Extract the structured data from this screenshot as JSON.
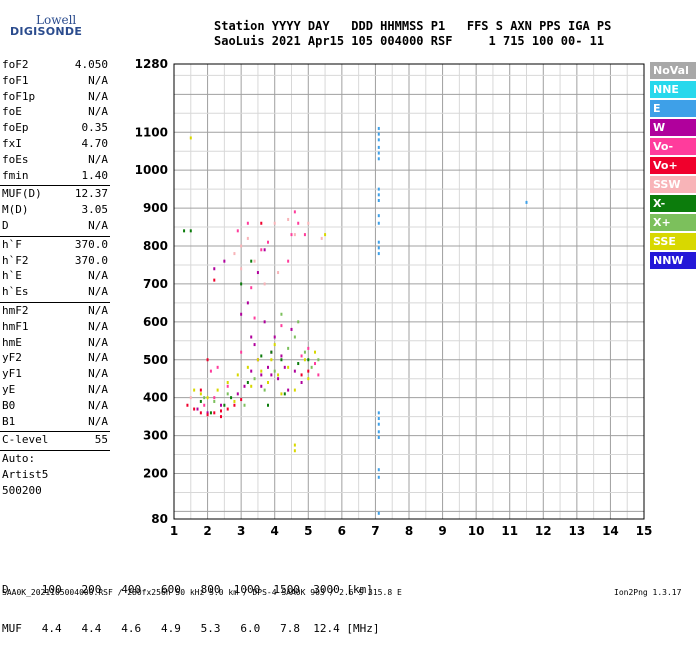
{
  "logo": {
    "line1": "Lowell",
    "line2": "DIGISONDE"
  },
  "header": {
    "line1": "Station YYYY DAY   DDD HHMMSS P1   FFS S AXN PPS IGA PS",
    "line2": "SaoLuis 2021 Apr15 105 004000 RSF     1 715 100 00- 11"
  },
  "params": [
    {
      "name": "foF2",
      "value": "4.050"
    },
    {
      "name": "foF1",
      "value": "N/A"
    },
    {
      "name": "foF1p",
      "value": "N/A"
    },
    {
      "name": "foE",
      "value": "N/A"
    },
    {
      "name": "foEp",
      "value": "0.35"
    },
    {
      "name": "fxI",
      "value": "4.70"
    },
    {
      "name": "foEs",
      "value": "N/A"
    },
    {
      "name": "fmin",
      "value": "1.40"
    },
    {
      "sep": true
    },
    {
      "name": "MUF(D)",
      "value": "12.37"
    },
    {
      "name": "M(D)",
      "value": "3.05"
    },
    {
      "name": "D",
      "value": "N/A"
    },
    {
      "sep": true
    },
    {
      "name": "h`F",
      "value": "370.0"
    },
    {
      "name": "h`F2",
      "value": "370.0"
    },
    {
      "name": "h`E",
      "value": "N/A"
    },
    {
      "name": "h`Es",
      "value": "N/A"
    },
    {
      "sep": true
    },
    {
      "name": "hmF2",
      "value": "N/A"
    },
    {
      "name": "hmF1",
      "value": "N/A"
    },
    {
      "name": "hmE",
      "value": "N/A"
    },
    {
      "name": "yF2",
      "value": "N/A"
    },
    {
      "name": "yF1",
      "value": "N/A"
    },
    {
      "name": "yE",
      "value": "N/A"
    },
    {
      "name": "B0",
      "value": "N/A"
    },
    {
      "name": "B1",
      "value": "N/A"
    },
    {
      "sep": true
    },
    {
      "name": "C-level",
      "value": "55"
    }
  ],
  "autoscale": {
    "line1": "Auto:",
    "line2": "Artist5",
    "line3": "500200"
  },
  "legend": [
    {
      "label": "NoVal",
      "color": "#a8a8a8"
    },
    {
      "label": "NNE",
      "color": "#28d8ec"
    },
    {
      "label": "E",
      "color": "#3ea0e8"
    },
    {
      "label": "W",
      "color": "#b0009c"
    },
    {
      "label": "Vo-",
      "color": "#ff3c9c"
    },
    {
      "label": "Vo+",
      "color": "#f0002c"
    },
    {
      "label": "SSW",
      "color": "#f8b4b8"
    },
    {
      "label": "X-",
      "color": "#0c7c0c"
    },
    {
      "label": "X+",
      "color": "#7cc05c"
    },
    {
      "label": "SSE",
      "color": "#d8d800"
    },
    {
      "label": "NNW",
      "color": "#2418d8"
    }
  ],
  "muf_table": {
    "row1_label": "D",
    "row1": [
      "100",
      "200",
      "400",
      "600",
      "800",
      "1000",
      "1500",
      "3000"
    ],
    "row1_unit": "[km]",
    "row2_label": "MUF",
    "row2": [
      "4.4",
      "4.4",
      "4.6",
      "4.9",
      "5.3",
      "6.0",
      "7.8",
      "12.4"
    ],
    "row2_unit": "[MHz]"
  },
  "footer": {
    "left": "SAA0K_2021105004000.RSF / 280fx256h 50 kHz 5.0 km / DPS-4 SAA0K 903 / 2.6 S 315.8 E",
    "right": "Ion2Png 1.3.17"
  },
  "chart_data": {
    "type": "scatter",
    "x_ticks": [
      "1",
      "2",
      "3",
      "4",
      "5",
      "6",
      "7",
      "8",
      "9",
      "10",
      "11",
      "12",
      "13",
      "14",
      "15"
    ],
    "y_ticks": [
      "80",
      "200",
      "300",
      "400",
      "500",
      "600",
      "700",
      "800",
      "900",
      "1000",
      "1100",
      "1280"
    ],
    "xlim": [
      1,
      15
    ],
    "ylim": [
      80,
      1280
    ],
    "grid": true,
    "series": [
      {
        "name": "E",
        "color": "#3ea0e8",
        "points": [
          [
            7.1,
            1110
          ],
          [
            7.1,
            1095
          ],
          [
            7.1,
            1080
          ],
          [
            7.1,
            1060
          ],
          [
            7.1,
            1045
          ],
          [
            7.1,
            1030
          ],
          [
            7.1,
            950
          ],
          [
            7.1,
            935
          ],
          [
            7.1,
            920
          ],
          [
            7.1,
            880
          ],
          [
            7.1,
            860
          ],
          [
            7.1,
            810
          ],
          [
            7.1,
            795
          ],
          [
            7.1,
            780
          ],
          [
            7.1,
            360
          ],
          [
            7.1,
            345
          ],
          [
            7.1,
            330
          ],
          [
            7.1,
            310
          ],
          [
            7.1,
            295
          ],
          [
            7.1,
            210
          ],
          [
            7.1,
            190
          ],
          [
            7.1,
            95
          ],
          [
            11.5,
            915
          ]
        ]
      },
      {
        "name": "W",
        "color": "#b0009c",
        "points": [
          [
            2.2,
            740
          ],
          [
            2.5,
            760
          ],
          [
            3.0,
            620
          ],
          [
            3.2,
            650
          ],
          [
            3.3,
            560
          ],
          [
            3.4,
            540
          ],
          [
            3.5,
            500
          ],
          [
            3.6,
            460
          ],
          [
            3.7,
            600
          ],
          [
            3.8,
            480
          ],
          [
            3.9,
            520
          ],
          [
            4.0,
            560
          ],
          [
            4.1,
            450
          ],
          [
            4.2,
            510
          ],
          [
            4.4,
            420
          ],
          [
            4.6,
            470
          ],
          [
            3.1,
            430
          ],
          [
            3.3,
            470
          ],
          [
            3.6,
            430
          ],
          [
            3.9,
            460
          ],
          [
            4.3,
            480
          ],
          [
            4.8,
            440
          ],
          [
            2.9,
            410
          ],
          [
            2.4,
            380
          ],
          [
            2.0,
            360
          ],
          [
            1.7,
            370
          ],
          [
            4.5,
            580
          ],
          [
            3.5,
            730
          ],
          [
            3.7,
            790
          ]
        ]
      },
      {
        "name": "Vo-",
        "color": "#ff3c9c",
        "points": [
          [
            2.1,
            470
          ],
          [
            2.3,
            480
          ],
          [
            2.9,
            840
          ],
          [
            3.2,
            860
          ],
          [
            3.3,
            690
          ],
          [
            3.6,
            790
          ],
          [
            3.8,
            810
          ],
          [
            4.5,
            830
          ],
          [
            4.6,
            890
          ],
          [
            4.7,
            860
          ],
          [
            5.0,
            530
          ],
          [
            5.2,
            490
          ],
          [
            5.3,
            460
          ],
          [
            4.8,
            510
          ],
          [
            4.2,
            590
          ],
          [
            3.4,
            610
          ],
          [
            3.0,
            520
          ],
          [
            2.6,
            430
          ],
          [
            2.2,
            400
          ],
          [
            1.9,
            380
          ],
          [
            4.9,
            830
          ],
          [
            4.4,
            760
          ]
        ]
      },
      {
        "name": "Vo+",
        "color": "#f0002c",
        "points": [
          [
            1.4,
            380
          ],
          [
            1.6,
            370
          ],
          [
            1.8,
            360
          ],
          [
            2.0,
            355
          ],
          [
            2.2,
            360
          ],
          [
            2.4,
            365
          ],
          [
            2.6,
            370
          ],
          [
            2.8,
            380
          ],
          [
            3.0,
            395
          ],
          [
            2.0,
            500
          ],
          [
            2.2,
            710
          ],
          [
            3.6,
            860
          ],
          [
            4.8,
            460
          ],
          [
            5.0,
            470
          ],
          [
            1.8,
            420
          ],
          [
            2.4,
            350
          ]
        ]
      },
      {
        "name": "SSW",
        "color": "#f8b4b8",
        "points": [
          [
            2.8,
            780
          ],
          [
            3.0,
            800
          ],
          [
            3.2,
            820
          ],
          [
            3.4,
            760
          ],
          [
            4.0,
            860
          ],
          [
            4.4,
            870
          ],
          [
            4.6,
            830
          ],
          [
            5.0,
            860
          ],
          [
            5.4,
            820
          ],
          [
            1.5,
            400
          ],
          [
            3.0,
            740
          ],
          [
            3.7,
            700
          ],
          [
            4.1,
            730
          ]
        ]
      },
      {
        "name": "X-",
        "color": "#0c7c0c",
        "points": [
          [
            1.3,
            840
          ],
          [
            1.5,
            840
          ],
          [
            3.0,
            700
          ],
          [
            3.3,
            760
          ],
          [
            3.6,
            510
          ],
          [
            3.9,
            520
          ],
          [
            4.2,
            500
          ],
          [
            4.7,
            490
          ],
          [
            5.0,
            500
          ],
          [
            2.5,
            380
          ],
          [
            2.7,
            400
          ],
          [
            3.2,
            440
          ],
          [
            3.8,
            380
          ],
          [
            4.3,
            410
          ],
          [
            2.1,
            360
          ],
          [
            1.8,
            390
          ]
        ]
      },
      {
        "name": "X+",
        "color": "#7cc05c",
        "points": [
          [
            3.4,
            450
          ],
          [
            3.7,
            420
          ],
          [
            4.0,
            470
          ],
          [
            4.4,
            530
          ],
          [
            4.6,
            560
          ],
          [
            4.9,
            520
          ],
          [
            5.1,
            480
          ],
          [
            5.3,
            500
          ],
          [
            3.1,
            380
          ],
          [
            2.6,
            410
          ],
          [
            2.2,
            390
          ],
          [
            1.9,
            400
          ],
          [
            4.2,
            620
          ],
          [
            4.7,
            600
          ]
        ]
      },
      {
        "name": "SSE",
        "color": "#d8d800",
        "points": [
          [
            1.5,
            1085
          ],
          [
            1.6,
            420
          ],
          [
            1.8,
            410
          ],
          [
            2.0,
            400
          ],
          [
            2.3,
            420
          ],
          [
            2.6,
            440
          ],
          [
            2.9,
            460
          ],
          [
            3.2,
            480
          ],
          [
            3.5,
            500
          ],
          [
            3.8,
            440
          ],
          [
            4.1,
            460
          ],
          [
            4.4,
            480
          ],
          [
            4.6,
            420
          ],
          [
            4.6,
            260
          ],
          [
            4.6,
            275
          ],
          [
            4.9,
            500
          ],
          [
            5.2,
            520
          ],
          [
            5.5,
            830
          ],
          [
            3.9,
            500
          ],
          [
            3.6,
            470
          ],
          [
            4.2,
            410
          ],
          [
            2.8,
            390
          ],
          [
            4.0,
            540
          ],
          [
            3.3,
            430
          ],
          [
            5.0,
            450
          ]
        ]
      }
    ]
  }
}
